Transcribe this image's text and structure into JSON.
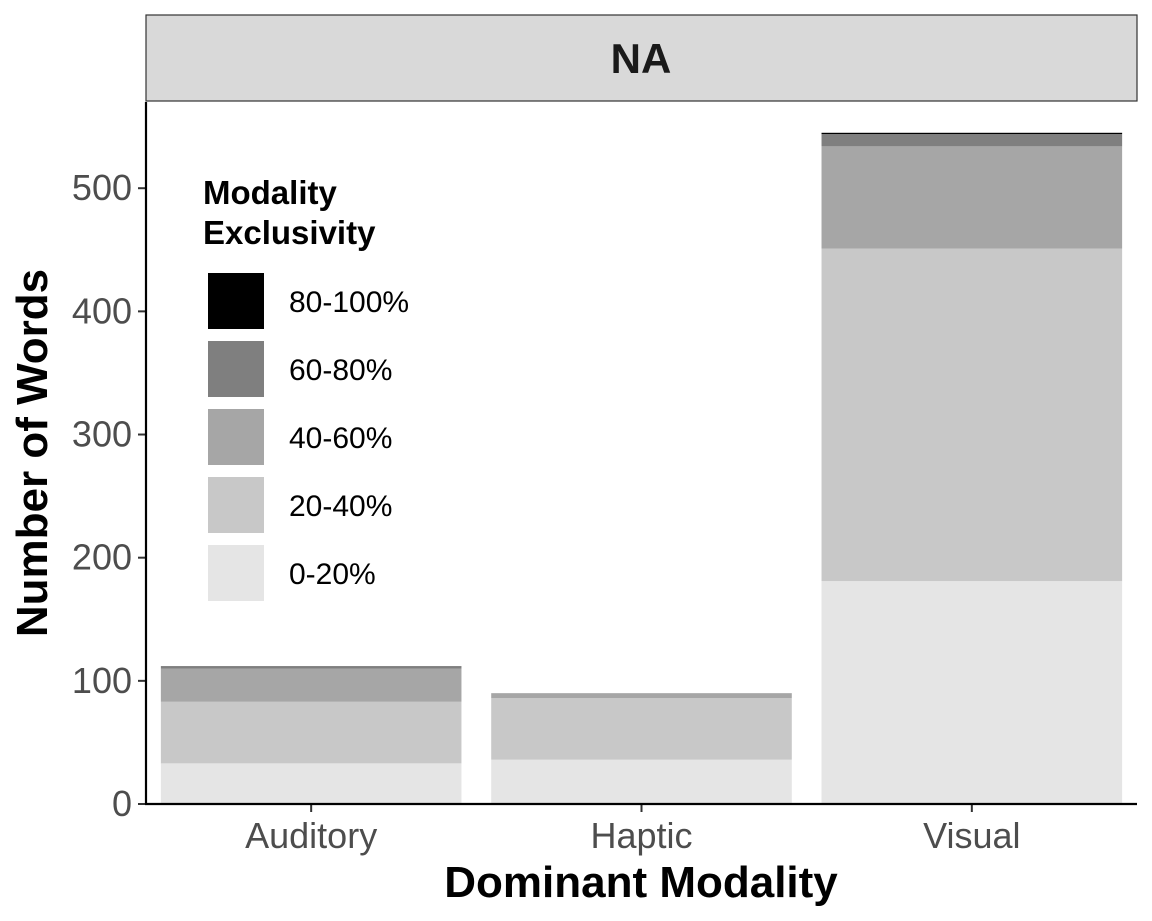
{
  "chart_data": {
    "type": "bar",
    "stacked": true,
    "facet_label": "NA",
    "categories": [
      "Auditory",
      "Haptic",
      "Visual"
    ],
    "series": [
      {
        "name": "0-20%",
        "color": "#e5e5e5",
        "values": [
          33,
          36,
          181
        ]
      },
      {
        "name": "20-40%",
        "color": "#c8c8c8",
        "values": [
          50,
          50,
          270
        ]
      },
      {
        "name": "40-60%",
        "color": "#a6a6a6",
        "values": [
          27,
          4,
          83
        ]
      },
      {
        "name": "60-80%",
        "color": "#7f7f7f",
        "values": [
          2,
          0,
          10
        ]
      },
      {
        "name": "80-100%",
        "color": "#000000",
        "values": [
          0,
          0,
          1
        ]
      }
    ],
    "xlabel": "Dominant Modality",
    "ylabel": "Number of Words",
    "ylim": [
      0,
      570
    ],
    "yticks": [
      0,
      100,
      200,
      300,
      400,
      500
    ],
    "legend": {
      "title_lines": [
        "Modality",
        "Exclusivity"
      ],
      "placement": "top-left inside",
      "order": [
        "80-100%",
        "60-80%",
        "40-60%",
        "20-40%",
        "0-20%"
      ]
    },
    "grid": false
  }
}
